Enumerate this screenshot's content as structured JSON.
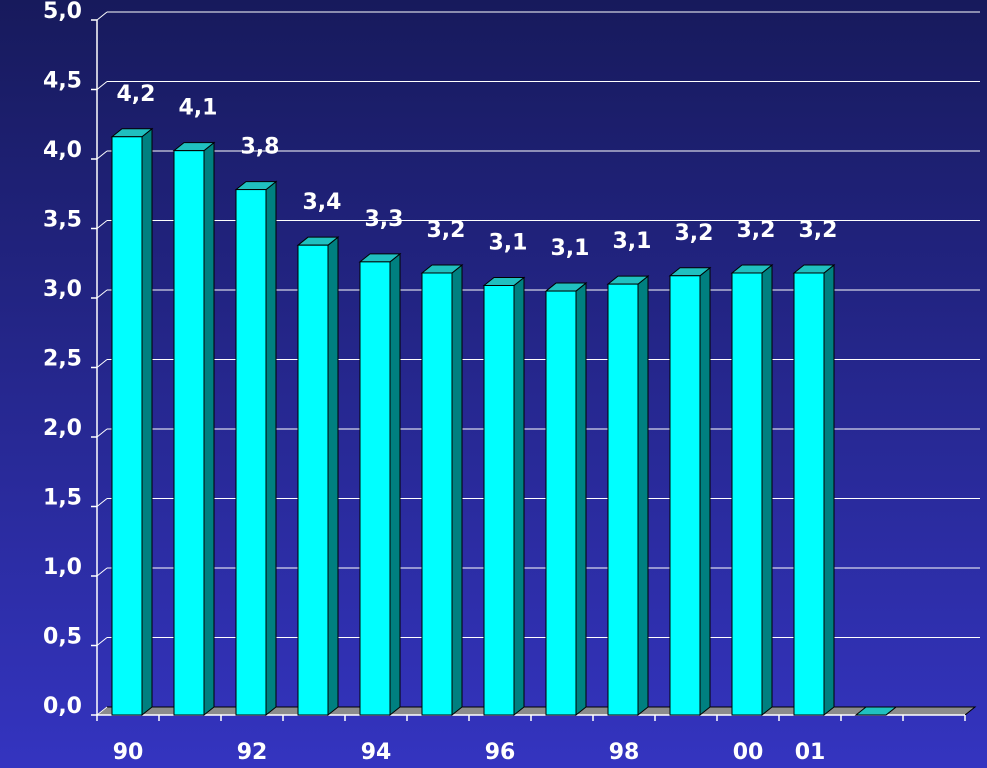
{
  "chart_data": {
    "type": "bar3d",
    "categories": [
      "90",
      null,
      "92",
      null,
      "94",
      null,
      "96",
      null,
      "98",
      null,
      "00",
      "01",
      null,
      null
    ],
    "values": [
      4.16,
      4.06,
      3.78,
      3.38,
      3.26,
      3.18,
      3.09,
      3.05,
      3.1,
      3.16,
      3.18,
      3.18,
      0,
      null
    ],
    "value_labels": [
      "4,2",
      "4,1",
      "3,8",
      "3,4",
      "3,3",
      "3,2",
      "3,1",
      "3,1",
      "3,1",
      "3,2",
      "3,2",
      "3,2",
      null,
      null
    ],
    "color": "#00ffff",
    "ylim": [
      0,
      5
    ],
    "yticks": [
      {
        "value": 0,
        "label": "0,0"
      },
      {
        "value": 0.5,
        "label": "0,5"
      },
      {
        "value": 1,
        "label": "1,0"
      },
      {
        "value": 1.5,
        "label": "1,5"
      },
      {
        "value": 2,
        "label": "2,0"
      },
      {
        "value": 2.5,
        "label": "2,5"
      },
      {
        "value": 3,
        "label": "3,0"
      },
      {
        "value": 3.5,
        "label": "3,5"
      },
      {
        "value": 4,
        "label": "4,0"
      },
      {
        "value": 4.5,
        "label": "4,5"
      },
      {
        "value": 5,
        "label": "5,0"
      }
    ],
    "grid": true
  }
}
